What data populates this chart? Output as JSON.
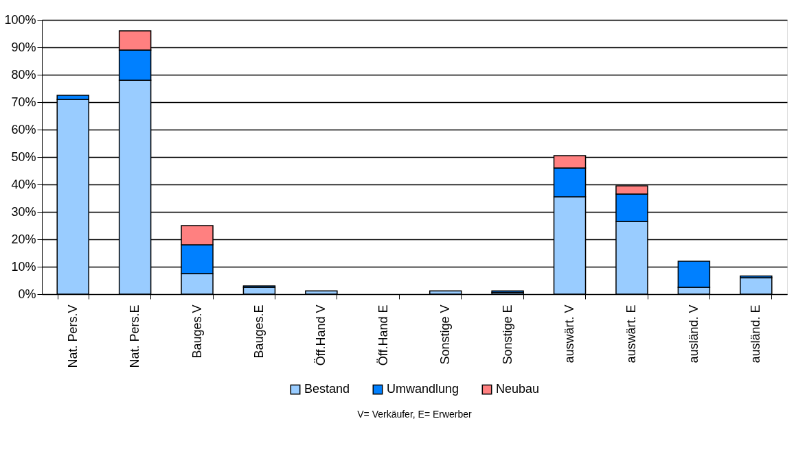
{
  "chart_data": {
    "type": "bar",
    "stacked": true,
    "categories": [
      "Nat. Pers.V",
      "Nat. Pers.E",
      "Bauges.V",
      "Bauges.E",
      "Öff.Hand V",
      "Öff.Hand E",
      "Sonstige V",
      "Sonstige E",
      "auswärt. V",
      "auswärt. E",
      "ausländ. V",
      "ausländ. E"
    ],
    "series": [
      {
        "name": "Bestand",
        "color": "#99ccff",
        "values": [
          71,
          78,
          7.5,
          2.5,
          1.2,
          null,
          1.2,
          0.6,
          35.5,
          26.5,
          2.5,
          6
        ]
      },
      {
        "name": "Umwandlung",
        "color": "#0080ff",
        "values": [
          1.5,
          11,
          10.5,
          0.5,
          null,
          null,
          null,
          0.6,
          10.5,
          10,
          9.5,
          0.6
        ]
      },
      {
        "name": "Neubau",
        "color": "#ff8080",
        "values": [
          null,
          7,
          7,
          null,
          null,
          null,
          null,
          null,
          4.5,
          3,
          null,
          null
        ]
      }
    ],
    "ylim": [
      0,
      100
    ],
    "yticks": [
      {
        "value": 0,
        "label": "0%"
      },
      {
        "value": 10,
        "label": "10%"
      },
      {
        "value": 20,
        "label": "20%"
      },
      {
        "value": 30,
        "label": "30%"
      },
      {
        "value": 40,
        "label": "40%"
      },
      {
        "value": 50,
        "label": "50%"
      },
      {
        "value": 60,
        "label": "60%"
      },
      {
        "value": 70,
        "label": "70%"
      },
      {
        "value": 80,
        "label": "80%"
      },
      {
        "value": 90,
        "label": "90%"
      },
      {
        "value": 100,
        "label": "100%"
      }
    ],
    "grid": "y",
    "legend": "bottom",
    "annotations": [
      "V= Verkäufer, E= Erwerber"
    ]
  }
}
